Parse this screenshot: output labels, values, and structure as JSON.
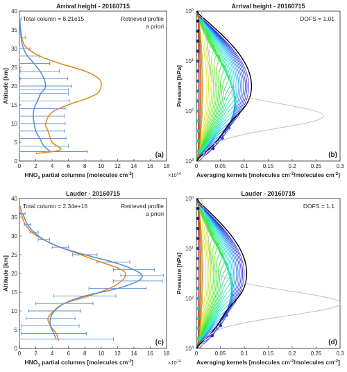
{
  "chart_data": [
    {
      "id": "a",
      "type": "line",
      "title": "Arrival height - 20160715",
      "panel_label": "(a)",
      "annotation": "Total column = 8.21e15",
      "xlabel_main": "HNO",
      "xlabel_sub": "3",
      "xlabel_rest": " partial columns [molecules cm",
      "xlabel_sup": "-2",
      "xlabel_end": "]",
      "x_multiplier_base": "×10",
      "x_multiplier_exp": "14",
      "ylabel": "Altitude [km]",
      "xlim": [
        0,
        18
      ],
      "ylim": [
        0,
        40
      ],
      "xticks": [
        0,
        2,
        4,
        6,
        8,
        10,
        12,
        14,
        16,
        18
      ],
      "yticks": [
        0,
        5,
        10,
        15,
        20,
        25,
        30,
        35,
        40
      ],
      "legend_position": "top-right",
      "series": [
        {
          "name": "Retrieved profile",
          "color": "#5a8fd6",
          "x": [
            3.8,
            3.0,
            2.5,
            2.0,
            1.8,
            1.7,
            1.8,
            2.2,
            2.6,
            3.0,
            3.2,
            3.0,
            2.5,
            1.8,
            1.0,
            0.5,
            0.2,
            0.05
          ],
          "y": [
            2.5,
            4,
            6,
            8,
            10,
            12,
            14,
            16,
            18,
            19,
            20,
            22,
            24,
            26,
            28,
            30,
            33,
            38
          ],
          "xerr": [
            4.5,
            3.0,
            3.2,
            3.5,
            3.8,
            3.8,
            3.8,
            3.9,
            3.4,
            3.0,
            3.2,
            2.9,
            2.4,
            1.9,
            1.4,
            0.8,
            0.5,
            0.2
          ]
        },
        {
          "name": "a priori",
          "color": "#e58a1f",
          "x": [
            2.0,
            5.0,
            4.0,
            3.5,
            3.2,
            4.0,
            6.0,
            8.0,
            9.5,
            10.0,
            9.7,
            8.0,
            5.0,
            2.5,
            1.0,
            0.4,
            0.1
          ],
          "y": [
            2,
            3,
            5,
            8,
            10,
            13,
            15,
            16.5,
            18,
            20,
            22,
            24,
            26,
            28,
            30,
            32,
            36
          ]
        }
      ]
    },
    {
      "id": "b",
      "type": "line",
      "title": "Arrival height - 20160715",
      "panel_label": "(b)",
      "annotation": "DOFS = 1.01",
      "xlabel": "Averaging kernels [molecules cm",
      "xlabel_sup": "-2",
      "xlabel_mid": "/molecules cm",
      "xlabel_sup2": "-2",
      "xlabel_end": "]",
      "ylabel": "Pressure [hPa]",
      "xlim": [
        0,
        0.3
      ],
      "ylim_log": [
        1,
        1000
      ],
      "xticks": [
        0,
        0.05,
        0.1,
        0.15,
        0.2,
        0.25,
        0.3
      ],
      "xtick_labels": [
        "0",
        "0.05",
        "0.1",
        "0.15",
        "0.2",
        "0.25",
        "0.3"
      ],
      "ytick_exps": [
        "0",
        "1",
        "2",
        "3"
      ],
      "sensitivity_peak": 0.25,
      "envelope_peak": 0.115
    },
    {
      "id": "c",
      "type": "line",
      "title": "Lauder - 20160715",
      "panel_label": "(c)",
      "annotation": "Total column = 2.34e+16",
      "xlabel_main": "HNO",
      "xlabel_sub": "3",
      "xlabel_rest": " partial columns [molecules cm",
      "xlabel_sup": "-2",
      "xlabel_end": "]",
      "x_multiplier_base": "×10",
      "x_multiplier_exp": "14",
      "ylabel": "Altitude [km]",
      "xlim": [
        0,
        18
      ],
      "ylim": [
        0,
        40
      ],
      "xticks": [
        0,
        2,
        4,
        6,
        8,
        10,
        12,
        14,
        16,
        18
      ],
      "yticks": [
        0,
        5,
        10,
        15,
        20,
        25,
        30,
        35,
        40
      ],
      "legend_position": "top-right",
      "series": [
        {
          "name": "Retrieved profile",
          "color": "#5a8fd6",
          "x": [
            4.5,
            4.2,
            3.8,
            3.8,
            4.3,
            5.5,
            8.0,
            12.0,
            14.5,
            15.0,
            14.0,
            11.5,
            8.0,
            5.0,
            3.0,
            1.8,
            1.0,
            0.4
          ],
          "y": [
            2.5,
            4,
            6,
            8,
            10,
            12,
            14,
            16,
            18,
            19.5,
            21,
            23,
            25,
            27,
            29,
            31,
            33,
            36
          ],
          "xerr": [
            7.0,
            4.0,
            3.5,
            3.0,
            3.2,
            3.5,
            3.8,
            3.5,
            3.0,
            2.6,
            2.5,
            2.0,
            1.5,
            1.0,
            0.7,
            0.5,
            0.4,
            0.3
          ]
        },
        {
          "name": "a priori",
          "color": "#e58a1f",
          "x": [
            4.8,
            4.5,
            3.8,
            3.5,
            4.2,
            5.5,
            8.5,
            11.0,
            12.5,
            13.0,
            12.0,
            10.0,
            7.5,
            5.0,
            3.0,
            1.5,
            0.5,
            0.1
          ],
          "y": [
            2,
            4,
            6,
            8,
            10,
            12,
            14,
            16,
            18,
            20,
            21.5,
            23,
            25,
            27,
            29,
            31,
            34,
            38
          ]
        }
      ]
    },
    {
      "id": "d",
      "type": "line",
      "title": "Lauder - 20160715",
      "panel_label": "(d)",
      "annotation": "DOFS = 1.1",
      "xlabel": "Averaging kernels [molecules cm",
      "xlabel_sup": "-2",
      "xlabel_mid": "/molecules cm",
      "xlabel_sup2": "-2",
      "xlabel_end": "]",
      "ylabel": "Pressure [hPa]",
      "xlim": [
        0,
        0.3
      ],
      "ylim_log": [
        1,
        1000
      ],
      "xticks": [
        0,
        0.05,
        0.1,
        0.15,
        0.2,
        0.25,
        0.3
      ],
      "xtick_labels": [
        "0",
        "0.05",
        "0.1",
        "0.15",
        "0.2",
        "0.25",
        "0.3"
      ],
      "ytick_exps": [
        "0",
        "1",
        "2",
        "3"
      ],
      "sensitivity_peak": 0.285,
      "envelope_peak": 0.105
    }
  ]
}
